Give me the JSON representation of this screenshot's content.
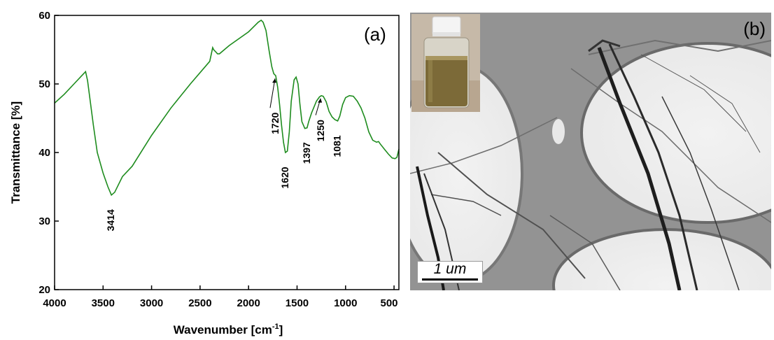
{
  "panels": {
    "a_label": "(a)",
    "b_label": "(b)"
  },
  "chart_data": {
    "type": "line",
    "xlabel": "Wavenumber [cm",
    "xlabel_sup": "-1",
    "xlabel_end": "]",
    "ylabel": "Transmittance [%]",
    "xlim": [
      4000,
      450
    ],
    "ylim": [
      20,
      60
    ],
    "x_ticks": [
      4000,
      3500,
      3000,
      2500,
      2000,
      1500,
      1000,
      500
    ],
    "y_ticks": [
      20,
      30,
      40,
      50,
      60
    ],
    "line_color": "#1e8c1e",
    "series": [
      {
        "x": [
          4000,
          3900,
          3800,
          3720,
          3680,
          3660,
          3600,
          3560,
          3500,
          3450,
          3414,
          3380,
          3300,
          3200,
          3000,
          2800,
          2600,
          2400,
          2370,
          2360,
          2340,
          2320,
          2300,
          2200,
          2000,
          1900,
          1870,
          1850,
          1820,
          1790,
          1760,
          1740,
          1720,
          1700,
          1680,
          1660,
          1640,
          1620,
          1600,
          1580,
          1560,
          1530,
          1510,
          1490,
          1470,
          1450,
          1420,
          1397,
          1380,
          1350,
          1300,
          1270,
          1250,
          1230,
          1200,
          1170,
          1140,
          1110,
          1081,
          1060,
          1030,
          1000,
          960,
          920,
          880,
          840,
          800,
          760,
          720,
          680,
          660,
          640,
          600,
          560,
          520,
          490,
          470,
          450
        ],
        "y": [
          47.2,
          48.5,
          50.0,
          51.2,
          51.8,
          50.5,
          44.0,
          40.0,
          37.0,
          35.0,
          33.8,
          34.2,
          36.5,
          38.0,
          42.5,
          46.5,
          50.0,
          53.3,
          55.3,
          55.0,
          54.7,
          54.4,
          54.4,
          55.6,
          57.6,
          59.0,
          59.3,
          59.0,
          57.8,
          55.0,
          52.5,
          51.5,
          51.2,
          49.5,
          47.0,
          44.0,
          41.5,
          40.0,
          40.2,
          43.0,
          47.5,
          50.6,
          51.0,
          50.0,
          47.0,
          44.5,
          43.5,
          43.6,
          44.5,
          45.8,
          47.5,
          48.1,
          48.3,
          48.2,
          47.4,
          46.0,
          45.2,
          44.8,
          44.6,
          45.3,
          47.0,
          48.0,
          48.3,
          48.2,
          47.5,
          46.5,
          45.0,
          43.0,
          41.8,
          41.5,
          41.6,
          41.2,
          40.5,
          39.8,
          39.2,
          39.1,
          39.3,
          40.5
        ]
      }
    ],
    "annotations": [
      {
        "text": "3414",
        "x": 3414,
        "y": 33.8
      },
      {
        "text": "1720",
        "x": 1720,
        "y": 51.2
      },
      {
        "text": "1620",
        "x": 1620,
        "y": 40.0
      },
      {
        "text": "1397",
        "x": 1397,
        "y": 43.6
      },
      {
        "text": "1250",
        "x": 1250,
        "y": 48.3
      },
      {
        "text": "1081",
        "x": 1081,
        "y": 44.6
      }
    ]
  },
  "micrograph": {
    "scale_text": "1 um"
  }
}
